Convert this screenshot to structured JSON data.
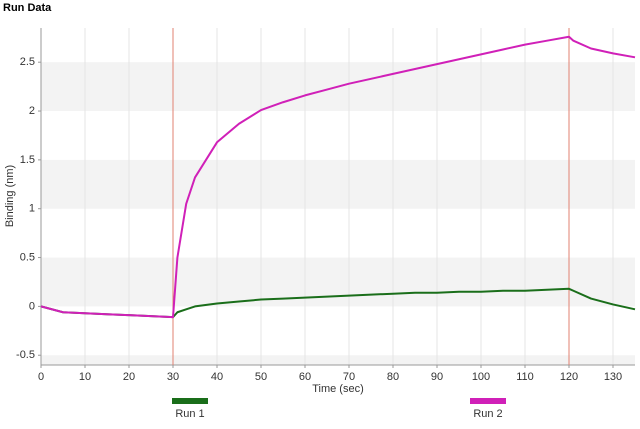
{
  "chart_data": {
    "type": "line",
    "title": "Run Data",
    "x_label": "Time (sec)",
    "y_label": "Binding (nm)",
    "x": [
      0,
      5,
      10,
      15,
      20,
      25,
      30,
      31,
      33,
      35,
      40,
      45,
      50,
      55,
      60,
      65,
      70,
      75,
      80,
      85,
      90,
      95,
      100,
      105,
      110,
      115,
      120,
      121,
      125,
      130,
      135
    ],
    "series": [
      {
        "name": "Run 1",
        "color": "#1a6e1a",
        "values": [
          0,
          -0.06,
          -0.07,
          -0.08,
          -0.09,
          -0.1,
          -0.11,
          -0.06,
          -0.03,
          0.0,
          0.03,
          0.05,
          0.07,
          0.08,
          0.09,
          0.1,
          0.11,
          0.12,
          0.13,
          0.14,
          0.14,
          0.15,
          0.15,
          0.16,
          0.16,
          0.17,
          0.18,
          0.16,
          0.08,
          0.02,
          -0.03
        ]
      },
      {
        "name": "Run 2",
        "color": "#d020b8",
        "values": [
          0,
          -0.06,
          -0.07,
          -0.08,
          -0.09,
          -0.1,
          -0.11,
          0.5,
          1.05,
          1.32,
          1.68,
          1.87,
          2.01,
          2.09,
          2.16,
          2.22,
          2.28,
          2.33,
          2.38,
          2.43,
          2.48,
          2.53,
          2.58,
          2.63,
          2.68,
          2.72,
          2.76,
          2.72,
          2.64,
          2.59,
          2.55
        ]
      }
    ],
    "xlim": [
      0,
      135
    ],
    "ylim": [
      -0.6,
      2.85
    ],
    "xticks": [
      0,
      10,
      20,
      30,
      40,
      50,
      60,
      70,
      80,
      90,
      100,
      110,
      120,
      130
    ],
    "yticks": [
      -0.5,
      0,
      0.5,
      1.0,
      1.5,
      2.0,
      2.5
    ],
    "vlines": [
      30,
      120
    ],
    "vline_color": "#e08070",
    "grid": true,
    "legend": "bottom"
  }
}
